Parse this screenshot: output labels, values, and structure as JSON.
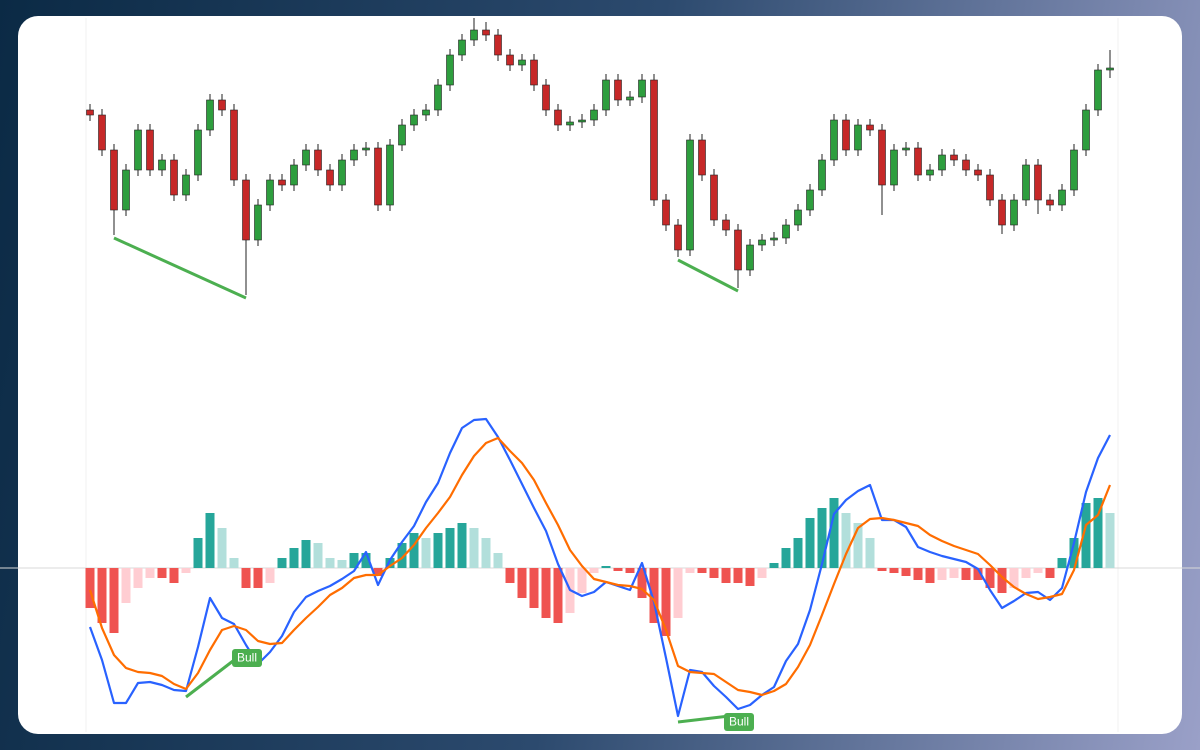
{
  "chart_data": [
    {
      "type": "candlestick",
      "ylim": [
        0,
        300
      ],
      "up_color": "#2e9e3e",
      "down_color": "#c62828",
      "wick_color": "#222222",
      "divergence_color": "#4caf50",
      "open": [
        190,
        185,
        150,
        90,
        130,
        170,
        130,
        140,
        105,
        125,
        170,
        200,
        190,
        120,
        60,
        95,
        120,
        115,
        135,
        150,
        130,
        115,
        140,
        150,
        152,
        95,
        155,
        175,
        185,
        190,
        215,
        245,
        260,
        270,
        265,
        245,
        235,
        240,
        215,
        190,
        175,
        178,
        180,
        190,
        220,
        200,
        203,
        220,
        100,
        75,
        50,
        160,
        125,
        80,
        70,
        30,
        55,
        60,
        62,
        75,
        90,
        110,
        140,
        180,
        150,
        175,
        170,
        115,
        150,
        152,
        125,
        130,
        145,
        140,
        130,
        125,
        100,
        75,
        100,
        135,
        100,
        95,
        110,
        150,
        190,
        230
      ],
      "high": [
        196,
        191,
        156,
        136,
        176,
        176,
        146,
        146,
        131,
        176,
        206,
        206,
        196,
        126,
        101,
        126,
        126,
        141,
        156,
        156,
        136,
        146,
        156,
        158,
        158,
        161,
        181,
        191,
        196,
        221,
        251,
        266,
        282,
        278,
        271,
        251,
        246,
        246,
        221,
        196,
        184,
        186,
        196,
        226,
        226,
        209,
        226,
        226,
        106,
        81,
        166,
        166,
        131,
        86,
        76,
        61,
        66,
        68,
        81,
        96,
        116,
        146,
        186,
        186,
        181,
        181,
        176,
        156,
        158,
        158,
        136,
        151,
        151,
        146,
        136,
        131,
        106,
        106,
        141,
        141,
        106,
        116,
        156,
        196,
        236,
        250
      ],
      "low": [
        179,
        144,
        65,
        84,
        124,
        124,
        124,
        99,
        99,
        119,
        164,
        184,
        114,
        5,
        54,
        89,
        109,
        109,
        129,
        124,
        109,
        109,
        134,
        144,
        89,
        89,
        149,
        169,
        179,
        184,
        209,
        239,
        254,
        259,
        239,
        229,
        229,
        209,
        184,
        169,
        169,
        172,
        174,
        184,
        194,
        194,
        197,
        94,
        69,
        43,
        44,
        119,
        74,
        64,
        12,
        24,
        49,
        54,
        56,
        69,
        84,
        104,
        134,
        144,
        144,
        164,
        85,
        109,
        144,
        119,
        119,
        124,
        134,
        124,
        119,
        94,
        66,
        69,
        94,
        86,
        89,
        89,
        104,
        144,
        184,
        222
      ],
      "close": [
        185,
        150,
        90,
        130,
        170,
        130,
        140,
        105,
        125,
        170,
        200,
        190,
        120,
        60,
        95,
        120,
        115,
        135,
        150,
        130,
        115,
        140,
        150,
        152,
        95,
        155,
        175,
        185,
        190,
        215,
        245,
        260,
        270,
        265,
        245,
        235,
        240,
        215,
        190,
        175,
        178,
        180,
        190,
        220,
        200,
        203,
        220,
        100,
        75,
        50,
        160,
        125,
        80,
        70,
        30,
        55,
        60,
        62,
        75,
        90,
        110,
        140,
        180,
        150,
        175,
        170,
        115,
        150,
        152,
        125,
        130,
        145,
        140,
        130,
        125,
        100,
        75,
        100,
        135,
        100,
        95,
        110,
        150,
        190,
        230,
        232
      ],
      "divergences": [
        {
          "start": 2,
          "end": 13
        },
        {
          "start": 49,
          "end": 54
        }
      ]
    },
    {
      "type": "macd",
      "ylim": [
        -170,
        170
      ],
      "divergence_color": "#4caf50",
      "series": [
        {
          "color": "#2962ff",
          "values": [
            -59,
            -92,
            -135,
            -135,
            -115,
            -114,
            -117,
            -122,
            -123,
            -79,
            -30,
            -50,
            -56,
            -77,
            -96,
            -84,
            -68,
            -44,
            -29,
            -23,
            -18,
            -11,
            -3,
            16,
            -17,
            8,
            26,
            42,
            66,
            85,
            115,
            140,
            148,
            149,
            131,
            108,
            84,
            60,
            37,
            4,
            -22,
            -28,
            -24,
            -14,
            -18,
            -22,
            5,
            -34,
            -90,
            -148,
            -102,
            -104,
            -118,
            -129,
            -141,
            -137,
            -127,
            -119,
            -93,
            -76,
            -42,
            4,
            54,
            68,
            77,
            83,
            48,
            48,
            41,
            21,
            16,
            12,
            9,
            6,
            -1,
            -22,
            -40,
            -33,
            -25,
            -24,
            -32,
            -20,
            25,
            76,
            110,
            133
          ]
        },
        {
          "color": "#ff6d00",
          "values": [
            -22,
            -60,
            -87,
            -100,
            -104,
            -105,
            -108,
            -116,
            -121,
            -105,
            -82,
            -62,
            -58,
            -62,
            -73,
            -76,
            -75,
            -62,
            -50,
            -39,
            -27,
            -20,
            -10,
            -7,
            -7,
            2,
            10,
            23,
            40,
            55,
            71,
            93,
            112,
            125,
            130,
            117,
            105,
            88,
            65,
            43,
            18,
            2,
            -11,
            -14,
            -17,
            -18,
            -21,
            -32,
            -62,
            -98,
            -104,
            -105,
            -106,
            -114,
            -122,
            -124,
            -127,
            -123,
            -116,
            -99,
            -77,
            -47,
            -16,
            14,
            40,
            49,
            50,
            48,
            45,
            42,
            33,
            27,
            22,
            18,
            14,
            3,
            -9,
            -19,
            -26,
            -31,
            -29,
            -26,
            -2,
            43,
            53,
            83
          ]
        }
      ],
      "histogram": {
        "values": [
          -40,
          -55,
          -65,
          -35,
          -20,
          -10,
          -10,
          -15,
          -5,
          30,
          55,
          40,
          10,
          -20,
          -20,
          -15,
          10,
          20,
          28,
          25,
          10,
          8,
          15,
          15,
          -8,
          10,
          25,
          35,
          30,
          35,
          40,
          45,
          40,
          30,
          15,
          -15,
          -30,
          -40,
          -50,
          -55,
          -45,
          -25,
          -5,
          2,
          -3,
          -5,
          -30,
          -55,
          -68,
          -50,
          -5,
          -5,
          -10,
          -15,
          -15,
          -18,
          -10,
          5,
          20,
          30,
          50,
          60,
          70,
          55,
          45,
          30,
          -3,
          -5,
          -8,
          -12,
          -15,
          -12,
          -10,
          -12,
          -12,
          -20,
          -25,
          -20,
          -10,
          -5,
          -10,
          10,
          30,
          65,
          70,
          55
        ],
        "colors": {
          "pos_up": "#26a69a",
          "pos_down": "#b2dfdb",
          "neg_down": "#ef5350",
          "neg_up": "#ffcdd2"
        }
      },
      "annotations": [
        {
          "text": "Bull",
          "start": 8,
          "end": 13
        },
        {
          "text": "Bull",
          "start": 49,
          "end": 54
        }
      ]
    }
  ]
}
